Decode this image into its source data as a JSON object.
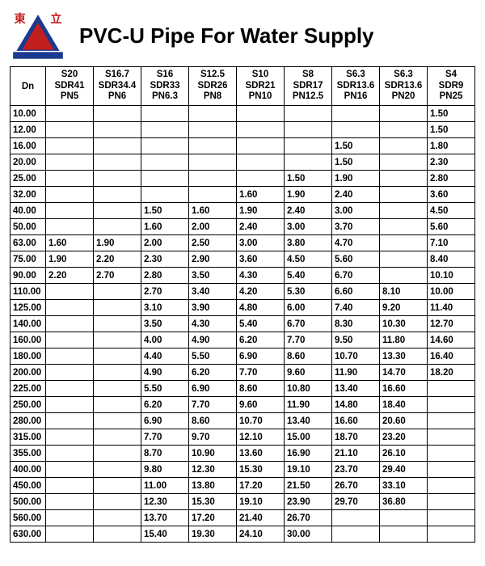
{
  "title": "PVC-U Pipe For Water Supply",
  "logo": {
    "text_left": "東",
    "text_right": "立",
    "text_color": "#c31e1e",
    "triangle_outer": "#1a3a8f",
    "triangle_inner": "#c31e1e",
    "base_color": "#1a3a8f"
  },
  "table": {
    "header_dn": "Dn",
    "columns": [
      {
        "s": "S20",
        "sdr": "SDR41",
        "pn": "PN5"
      },
      {
        "s": "S16.7",
        "sdr": "SDR34.4",
        "pn": "PN6"
      },
      {
        "s": "S16",
        "sdr": "SDR33",
        "pn": "PN6.3"
      },
      {
        "s": "S12.5",
        "sdr": "SDR26",
        "pn": "PN8"
      },
      {
        "s": "S10",
        "sdr": "SDR21",
        "pn": "PN10"
      },
      {
        "s": "S8",
        "sdr": "SDR17",
        "pn": "PN12.5"
      },
      {
        "s": "S6.3",
        "sdr": "SDR13.6",
        "pn": "PN16"
      },
      {
        "s": "S6.3",
        "sdr": "SDR13.6",
        "pn": "PN20"
      },
      {
        "s": "S4",
        "sdr": "SDR9",
        "pn": "PN25"
      }
    ],
    "rows": [
      {
        "dn": "10.00",
        "v": [
          "",
          "",
          "",
          "",
          "",
          "",
          "",
          "",
          "1.50"
        ]
      },
      {
        "dn": "12.00",
        "v": [
          "",
          "",
          "",
          "",
          "",
          "",
          "",
          "",
          "1.50"
        ]
      },
      {
        "dn": "16.00",
        "v": [
          "",
          "",
          "",
          "",
          "",
          "",
          "1.50",
          "",
          "1.80"
        ]
      },
      {
        "dn": "20.00",
        "v": [
          "",
          "",
          "",
          "",
          "",
          "",
          "1.50",
          "",
          "2.30"
        ]
      },
      {
        "dn": "25.00",
        "v": [
          "",
          "",
          "",
          "",
          "",
          "1.50",
          "1.90",
          "",
          "2.80"
        ]
      },
      {
        "dn": "32.00",
        "v": [
          "",
          "",
          "",
          "",
          "1.60",
          "1.90",
          "2.40",
          "",
          "3.60"
        ]
      },
      {
        "dn": "40.00",
        "v": [
          "",
          "",
          "1.50",
          "1.60",
          "1.90",
          "2.40",
          "3.00",
          "",
          "4.50"
        ]
      },
      {
        "dn": "50.00",
        "v": [
          "",
          "",
          "1.60",
          "2.00",
          "2.40",
          "3.00",
          "3.70",
          "",
          "5.60"
        ]
      },
      {
        "dn": "63.00",
        "v": [
          "1.60",
          "1.90",
          "2.00",
          "2.50",
          "3.00",
          "3.80",
          "4.70",
          "",
          "7.10"
        ]
      },
      {
        "dn": "75.00",
        "v": [
          "1.90",
          "2.20",
          "2.30",
          "2.90",
          "3.60",
          "4.50",
          "5.60",
          "",
          "8.40"
        ]
      },
      {
        "dn": "90.00",
        "v": [
          "2.20",
          "2.70",
          "2.80",
          "3.50",
          "4.30",
          "5.40",
          "6.70",
          "",
          "10.10"
        ]
      },
      {
        "dn": "110.00",
        "v": [
          "",
          "",
          "2.70",
          "3.40",
          "4.20",
          "5.30",
          "6.60",
          "8.10",
          "10.00"
        ]
      },
      {
        "dn": "125.00",
        "v": [
          "",
          "",
          "3.10",
          "3.90",
          "4.80",
          "6.00",
          "7.40",
          "9.20",
          "11.40"
        ]
      },
      {
        "dn": "140.00",
        "v": [
          "",
          "",
          "3.50",
          "4.30",
          "5.40",
          "6.70",
          "8.30",
          "10.30",
          "12.70"
        ]
      },
      {
        "dn": "160.00",
        "v": [
          "",
          "",
          "4.00",
          "4.90",
          "6.20",
          "7.70",
          "9.50",
          "11.80",
          "14.60"
        ]
      },
      {
        "dn": "180.00",
        "v": [
          "",
          "",
          "4.40",
          "5.50",
          "6.90",
          "8.60",
          "10.70",
          "13.30",
          "16.40"
        ]
      },
      {
        "dn": "200.00",
        "v": [
          "",
          "",
          "4.90",
          "6.20",
          "7.70",
          "9.60",
          "11.90",
          "14.70",
          "18.20"
        ]
      },
      {
        "dn": "225.00",
        "v": [
          "",
          "",
          "5.50",
          "6.90",
          "8.60",
          "10.80",
          "13.40",
          "16.60",
          ""
        ]
      },
      {
        "dn": "250.00",
        "v": [
          "",
          "",
          "6.20",
          "7.70",
          "9.60",
          "11.90",
          "14.80",
          "18.40",
          ""
        ]
      },
      {
        "dn": "280.00",
        "v": [
          "",
          "",
          "6.90",
          "8.60",
          "10.70",
          "13.40",
          "16.60",
          "20.60",
          ""
        ]
      },
      {
        "dn": "315.00",
        "v": [
          "",
          "",
          "7.70",
          "9.70",
          "12.10",
          "15.00",
          "18.70",
          "23.20",
          ""
        ]
      },
      {
        "dn": "355.00",
        "v": [
          "",
          "",
          "8.70",
          "10.90",
          "13.60",
          "16.90",
          "21.10",
          "26.10",
          ""
        ]
      },
      {
        "dn": "400.00",
        "v": [
          "",
          "",
          "9.80",
          "12.30",
          "15.30",
          "19.10",
          "23.70",
          "29.40",
          ""
        ]
      },
      {
        "dn": "450.00",
        "v": [
          "",
          "",
          "11.00",
          "13.80",
          "17.20",
          "21.50",
          "26.70",
          "33.10",
          ""
        ]
      },
      {
        "dn": "500.00",
        "v": [
          "",
          "",
          "12.30",
          "15.30",
          "19.10",
          "23.90",
          "29.70",
          "36.80",
          ""
        ]
      },
      {
        "dn": "560.00",
        "v": [
          "",
          "",
          "13.70",
          "17.20",
          "21.40",
          "26.70",
          "",
          "",
          ""
        ]
      },
      {
        "dn": "630.00",
        "v": [
          "",
          "",
          "15.40",
          "19.30",
          "24.10",
          "30.00",
          "",
          "",
          ""
        ]
      }
    ]
  }
}
